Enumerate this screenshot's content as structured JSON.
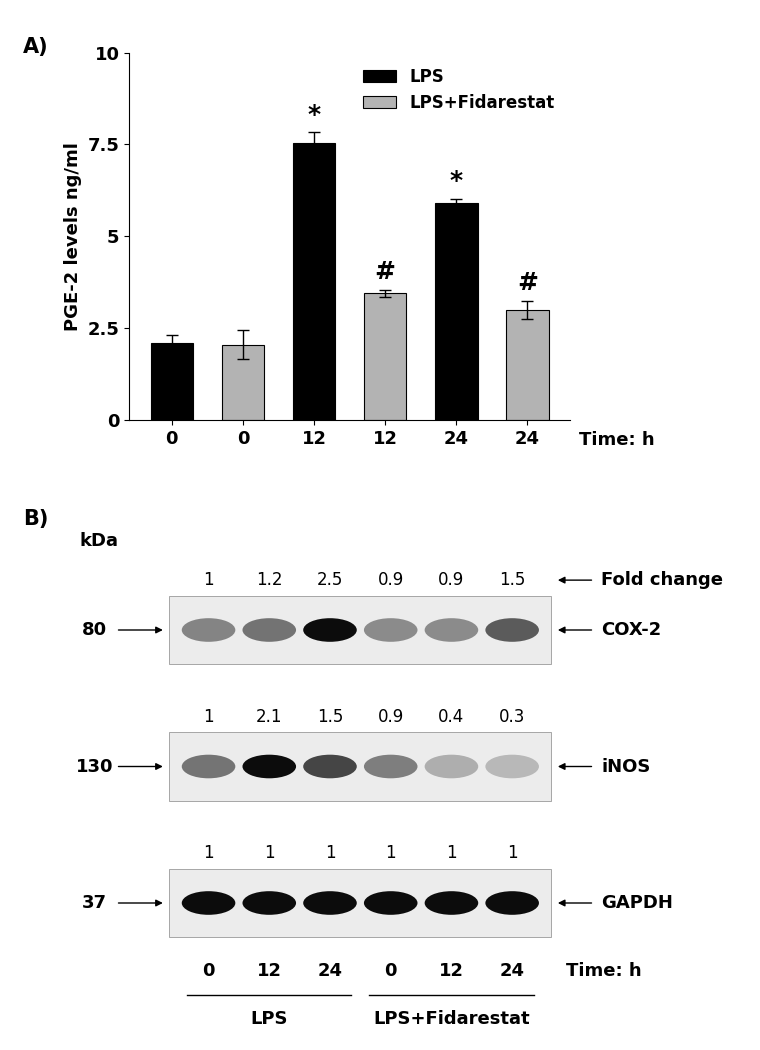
{
  "chart_data": {
    "type": "bar",
    "panel_label": "A)",
    "y_label": "PGE-2 levels ng/ml",
    "x_label": "Time: h",
    "categories": [
      "0",
      "0",
      "12",
      "12",
      "24",
      "24"
    ],
    "series": [
      {
        "name": "LPS",
        "color": "#000000",
        "values": [
          2.1,
          null,
          7.55,
          null,
          5.9,
          null
        ],
        "errors": [
          0.22,
          null,
          0.28,
          null,
          0.12,
          null
        ],
        "annotations": [
          null,
          null,
          "*",
          null,
          "*",
          null
        ]
      },
      {
        "name": "LPS+Fidarestat",
        "color": "#b3b3b3",
        "values": [
          null,
          2.05,
          null,
          3.45,
          null,
          3.0
        ],
        "errors": [
          null,
          0.4,
          null,
          0.1,
          null,
          0.25
        ],
        "annotations": [
          null,
          null,
          null,
          "#",
          null,
          "#"
        ]
      }
    ],
    "ylim": [
      0,
      10
    ],
    "yticks": [
      0,
      2.5,
      5,
      7.5,
      10
    ],
    "legend": "upper right"
  },
  "western_blot": {
    "panel_label": "B)",
    "mw_label": "kDa",
    "fold_change_label": "Fold change",
    "rows": [
      {
        "protein": "COX-2",
        "mw": 80,
        "fold_change": [
          1,
          1.2,
          2.5,
          0.9,
          0.9,
          1.5
        ]
      },
      {
        "protein": "iNOS",
        "mw": 130,
        "fold_change": [
          1,
          2.1,
          1.5,
          0.9,
          0.4,
          0.3
        ]
      },
      {
        "protein": "GAPDH",
        "mw": 37,
        "fold_change": [
          1,
          1,
          1,
          1,
          1,
          1
        ]
      }
    ],
    "lanes": [
      "0",
      "12",
      "24",
      "0",
      "12",
      "24"
    ],
    "time_label": "Time: h",
    "groups": [
      "LPS",
      "LPS+Fidarestat"
    ]
  }
}
